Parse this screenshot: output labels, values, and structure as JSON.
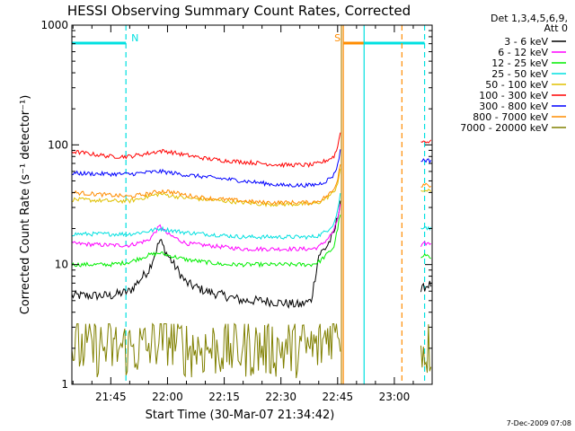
{
  "chart_data": {
    "type": "line",
    "title": "HESSI Observing Summary Count Rates, Corrected",
    "xlabel": "Start Time (30-Mar-07 21:34:42)",
    "ylabel": "Corrected Count Rate (s⁻¹ detector⁻¹)",
    "yscale": "log",
    "ylim": [
      1,
      1000
    ],
    "ytick_labels": [
      "1",
      "10",
      "100",
      "1000"
    ],
    "xlim": [
      "21:34:42",
      "23:10:00"
    ],
    "xtick_labels": [
      "21:45",
      "22:00",
      "22:15",
      "22:30",
      "22:45",
      "23:00"
    ],
    "legend_header": [
      "Det 1,3,4,5,6,9,",
      "Att 0"
    ],
    "legend_position": "right",
    "footer_date": "7-Dec-2009 07:08",
    "status_bars": [
      {
        "label": "N",
        "start": "21:34:42",
        "end": "21:49:00",
        "color": "#00e0e0"
      },
      {
        "label": "S",
        "start": "22:46:30",
        "end": "23:02:00",
        "color": "#ff8c00"
      },
      {
        "label": "",
        "start": "22:52:00",
        "end": "23:08:00",
        "color": "#00e0e0"
      }
    ],
    "vertical_markers": [
      {
        "time": "21:49:00",
        "color": "#00e0e0",
        "style": "dashed"
      },
      {
        "time": "22:46:00",
        "color": "#b8860b",
        "style": "solid"
      },
      {
        "time": "22:46:30",
        "color": "#ff8c00",
        "style": "solid"
      },
      {
        "time": "22:52:00",
        "color": "#00e0e0",
        "style": "solid"
      },
      {
        "time": "23:02:00",
        "color": "#ff8c00",
        "style": "dashed"
      },
      {
        "time": "23:08:00",
        "color": "#00e0e0",
        "style": "dashed"
      }
    ],
    "data_gap": [
      "22:46:00",
      "23:07:00"
    ],
    "series": [
      {
        "name": "3 - 6 keV",
        "color": "#000000",
        "x": [
          "21:34:42",
          "21:45",
          "21:50",
          "21:55",
          "21:58",
          "22:00",
          "22:05",
          "22:10",
          "22:15",
          "22:20",
          "22:25",
          "22:30",
          "22:35",
          "22:38",
          "22:40",
          "22:42",
          "22:44",
          "22:45",
          "22:46",
          "23:07",
          "23:08",
          "23:09"
        ],
        "y": [
          5.5,
          5.5,
          6,
          9,
          16,
          12,
          7,
          6,
          5.5,
          5,
          5,
          4.8,
          4.6,
          5,
          12,
          14,
          18,
          25,
          40,
          6,
          6.5,
          6.8
        ]
      },
      {
        "name": "6 - 12 keV",
        "color": "#ff00ff",
        "x": [
          "21:34:42",
          "21:45",
          "21:50",
          "21:55",
          "21:58",
          "22:00",
          "22:05",
          "22:10",
          "22:15",
          "22:20",
          "22:25",
          "22:30",
          "22:35",
          "22:38",
          "22:40",
          "22:42",
          "22:44",
          "22:45",
          "22:46",
          "23:07",
          "23:08",
          "23:09"
        ],
        "y": [
          15,
          14.5,
          14.5,
          16,
          21,
          18,
          15,
          14.5,
          14,
          13.5,
          13.5,
          13.5,
          13.5,
          13.5,
          14,
          16,
          19,
          24,
          35,
          14,
          15,
          15
        ]
      },
      {
        "name": "12 - 25 keV",
        "color": "#00ee00",
        "x": [
          "21:34:42",
          "21:45",
          "21:50",
          "21:55",
          "21:58",
          "22:00",
          "22:05",
          "22:10",
          "22:15",
          "22:20",
          "22:25",
          "22:30",
          "22:35",
          "22:38",
          "22:40",
          "22:42",
          "22:44",
          "22:45",
          "22:46",
          "23:07",
          "23:08",
          "23:09"
        ],
        "y": [
          10,
          10,
          10.5,
          12,
          12.5,
          12,
          11,
          10.5,
          10,
          10,
          10,
          10,
          10,
          10,
          10.5,
          12,
          14,
          20,
          30,
          11,
          12,
          11.5
        ]
      },
      {
        "name": "25 - 50 keV",
        "color": "#00e0e0",
        "x": [
          "21:34:42",
          "21:45",
          "21:50",
          "21:55",
          "21:58",
          "22:00",
          "22:05",
          "22:10",
          "22:15",
          "22:20",
          "22:25",
          "22:30",
          "22:35",
          "22:38",
          "22:40",
          "22:42",
          "22:44",
          "22:45",
          "22:46",
          "23:07",
          "23:08",
          "23:09"
        ],
        "y": [
          18,
          18,
          18,
          19,
          20,
          19.5,
          18.5,
          18,
          17.5,
          17,
          17,
          17,
          17,
          17,
          17.5,
          19,
          22,
          28,
          45,
          20,
          21,
          20
        ]
      },
      {
        "name": "50 - 100 keV",
        "color": "#e0c000",
        "x": [
          "21:34:42",
          "21:45",
          "21:50",
          "21:55",
          "21:58",
          "22:00",
          "22:05",
          "22:10",
          "22:15",
          "22:20",
          "22:25",
          "22:30",
          "22:35",
          "22:38",
          "22:40",
          "22:42",
          "22:44",
          "22:45",
          "22:46",
          "23:07",
          "23:08",
          "23:09"
        ],
        "y": [
          35,
          34,
          34,
          37,
          39,
          38,
          36,
          35,
          34,
          33,
          32,
          32,
          32,
          32,
          33,
          36,
          40,
          48,
          70,
          40,
          42,
          41
        ]
      },
      {
        "name": "100 - 300 keV",
        "color": "#ff0000",
        "x": [
          "21:34:42",
          "21:45",
          "21:50",
          "21:55",
          "21:58",
          "22:00",
          "22:05",
          "22:10",
          "22:15",
          "22:20",
          "22:25",
          "22:30",
          "22:35",
          "22:38",
          "22:40",
          "22:42",
          "22:44",
          "22:45",
          "22:46",
          "23:07",
          "23:08",
          "23:09"
        ],
        "y": [
          88,
          80,
          80,
          85,
          89,
          88,
          82,
          77,
          74,
          72,
          70,
          68,
          68,
          68,
          70,
          74,
          80,
          95,
          150,
          105,
          108,
          106
        ]
      },
      {
        "name": "300 - 800 keV",
        "color": "#0000ff",
        "x": [
          "21:34:42",
          "21:45",
          "21:50",
          "21:55",
          "21:58",
          "22:00",
          "22:05",
          "22:10",
          "22:15",
          "22:20",
          "22:25",
          "22:30",
          "22:35",
          "22:38",
          "22:40",
          "22:42",
          "22:44",
          "22:45",
          "22:46",
          "23:07",
          "23:08",
          "23:09"
        ],
        "y": [
          58,
          57,
          57,
          59,
          60,
          59,
          56,
          54,
          52,
          50,
          48,
          46,
          46,
          46,
          47,
          50,
          56,
          68,
          100,
          74,
          75,
          74
        ]
      },
      {
        "name": "800 - 7000 keV",
        "color": "#ff8c00",
        "x": [
          "21:34:42",
          "21:45",
          "21:50",
          "21:55",
          "21:58",
          "22:00",
          "22:05",
          "22:10",
          "22:15",
          "22:20",
          "22:25",
          "22:30",
          "22:35",
          "22:38",
          "22:40",
          "22:42",
          "22:44",
          "22:45",
          "22:46",
          "23:07",
          "23:08",
          "23:09"
        ],
        "y": [
          40,
          38,
          37,
          39,
          41,
          41,
          38,
          36,
          35,
          34,
          33,
          33,
          33,
          33,
          34,
          37,
          42,
          52,
          80,
          45,
          48,
          46
        ]
      },
      {
        "name": "7000 - 20000 keV",
        "color": "#808000",
        "x": [
          "21:34:42",
          "21:45",
          "21:50",
          "21:55",
          "21:58",
          "22:00",
          "22:05",
          "22:10",
          "22:15",
          "22:20",
          "22:25",
          "22:30",
          "22:35",
          "22:38",
          "22:40",
          "22:42",
          "22:44",
          "22:45",
          "22:46",
          "23:07",
          "23:08",
          "23:09"
        ],
        "y": [
          2,
          2,
          2,
          2,
          2.5,
          2.5,
          2,
          2,
          2,
          2,
          2,
          2,
          2,
          2,
          2,
          2.5,
          3,
          3,
          3,
          2,
          2,
          2
        ]
      }
    ]
  }
}
